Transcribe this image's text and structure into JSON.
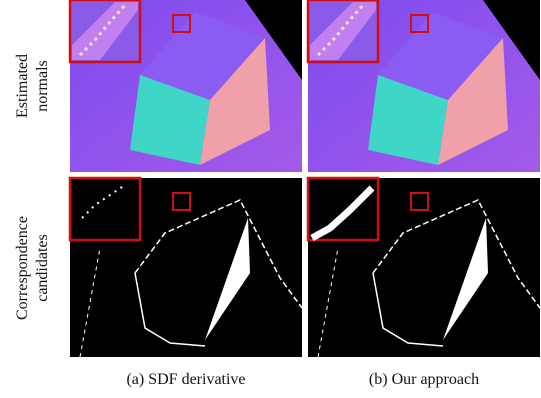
{
  "rows": [
    {
      "label": [
        "Estimated",
        "normals"
      ]
    },
    {
      "label": [
        "Correspondence",
        "candidates"
      ]
    }
  ],
  "captions": [
    "(a) SDF derivative",
    "(b) Our approach"
  ]
}
